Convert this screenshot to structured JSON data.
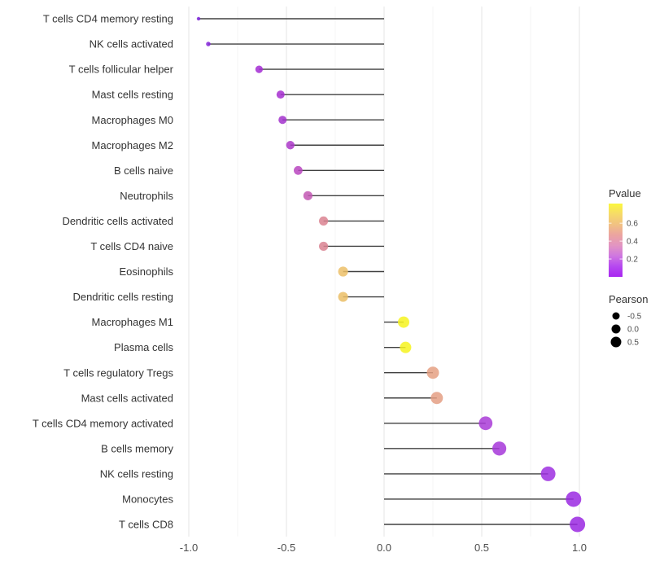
{
  "chart_data": {
    "type": "lollipop",
    "title": "",
    "xlabel": "",
    "ylabel": "",
    "x_axis": {
      "tick_labels": [
        "-1.0",
        "-0.5",
        "0.0",
        "0.5",
        "1.0"
      ],
      "tick_values": [
        -1.0,
        -0.5,
        0.0,
        0.5,
        1.0
      ],
      "minor_tick_values": [
        -0.75,
        -0.25,
        0.25,
        0.75
      ],
      "range": [
        -1.06,
        1.06
      ],
      "grid": "vertical-only"
    },
    "points": [
      {
        "label": "T cells CD4 memory resting",
        "pearson": -0.95,
        "pvalue_approx": 0.02,
        "color": "#7c25d9",
        "r": 2.2
      },
      {
        "label": "NK cells activated",
        "pearson": -0.9,
        "pvalue_approx": 0.03,
        "color": "#8527da",
        "r": 2.8
      },
      {
        "label": "T cells follicular helper",
        "pearson": -0.64,
        "pvalue_approx": 0.1,
        "color": "#a32bd3",
        "r": 4.6
      },
      {
        "label": "Mast cells resting",
        "pearson": -0.53,
        "pvalue_approx": 0.11,
        "color": "#a62ed0",
        "r": 5.0
      },
      {
        "label": "Macrophages M0",
        "pearson": -0.52,
        "pvalue_approx": 0.11,
        "color": "#a231cd",
        "r": 5.0
      },
      {
        "label": "Macrophages M2",
        "pearson": -0.48,
        "pvalue_approx": 0.14,
        "color": "#ac38c9",
        "r": 5.2
      },
      {
        "label": "B cells naive",
        "pearson": -0.44,
        "pvalue_approx": 0.18,
        "color": "#b945c0",
        "r": 5.4
      },
      {
        "label": "Neutrophils",
        "pearson": -0.39,
        "pvalue_approx": 0.23,
        "color": "#c257b3",
        "r": 5.6
      },
      {
        "label": "Dendritic cells activated",
        "pearson": -0.31,
        "pvalue_approx": 0.35,
        "color": "#da8390",
        "r": 5.6
      },
      {
        "label": "T cells CD4 naive",
        "pearson": -0.31,
        "pvalue_approx": 0.35,
        "color": "#d98292",
        "r": 5.6
      },
      {
        "label": "Eosinophils",
        "pearson": -0.21,
        "pvalue_approx": 0.55,
        "color": "#ecc069",
        "r": 6.1
      },
      {
        "label": "Dendritic cells resting",
        "pearson": -0.21,
        "pvalue_approx": 0.55,
        "color": "#ebbe66",
        "r": 6.1
      },
      {
        "label": "Macrophages M1",
        "pearson": 0.1,
        "pvalue_approx": 0.75,
        "color": "#f6f31f",
        "r": 7.0
      },
      {
        "label": "Plasma cells",
        "pearson": 0.11,
        "pvalue_approx": 0.75,
        "color": "#f6f31f",
        "r": 7.0
      },
      {
        "label": "T cells regulatory  Tregs",
        "pearson": 0.25,
        "pvalue_approx": 0.45,
        "color": "#e5a083",
        "r": 7.5
      },
      {
        "label": "Mast cells activated",
        "pearson": 0.27,
        "pvalue_approx": 0.45,
        "color": "#e49f84",
        "r": 7.5
      },
      {
        "label": "T cells CD4 memory activated",
        "pearson": 0.52,
        "pvalue_approx": 0.07,
        "color": "#a93bd7",
        "r": 8.4
      },
      {
        "label": "B cells memory",
        "pearson": 0.59,
        "pvalue_approx": 0.06,
        "color": "#a637d9",
        "r": 8.6
      },
      {
        "label": "NK cells resting",
        "pearson": 0.84,
        "pvalue_approx": 0.02,
        "color": "#9d2fe0",
        "r": 9.0
      },
      {
        "label": "Monocytes",
        "pearson": 0.97,
        "pvalue_approx": 0.01,
        "color": "#9a29e2",
        "r": 9.5
      },
      {
        "label": "T cells CD8",
        "pearson": 0.99,
        "pvalue_approx": 0.01,
        "color": "#9a28e2",
        "r": 9.5
      }
    ],
    "legend_pvalue": {
      "title": "Pvalue",
      "tick_labels": [
        "0.6",
        "0.4",
        "0.2"
      ],
      "tick_values": [
        0.6,
        0.4,
        0.2
      ],
      "range": [
        0,
        0.82
      ],
      "gradient_bottom_to_top": [
        "#a826f0",
        "#b648f0",
        "#cf77e0",
        "#e295c2",
        "#eba4a0",
        "#f1c183",
        "#f6da69",
        "#fbf73d"
      ],
      "position": "right"
    },
    "legend_pearson": {
      "title": "Pearson",
      "items": [
        {
          "label": "-0.5",
          "r": 4.5
        },
        {
          "label": "0.0",
          "r": 5.5
        },
        {
          "label": "0.5",
          "r": 6.5
        }
      ],
      "dot_color": "#000000",
      "position": "right"
    },
    "colors": {
      "background": "#ffffff",
      "stem": "#404040",
      "grid_major": "#e7e7e7",
      "grid_minor": "#f3f3f3",
      "axis_tick_text": "#4d4d4d",
      "category_text": "#333333",
      "legend_title_text": "#333333"
    }
  }
}
